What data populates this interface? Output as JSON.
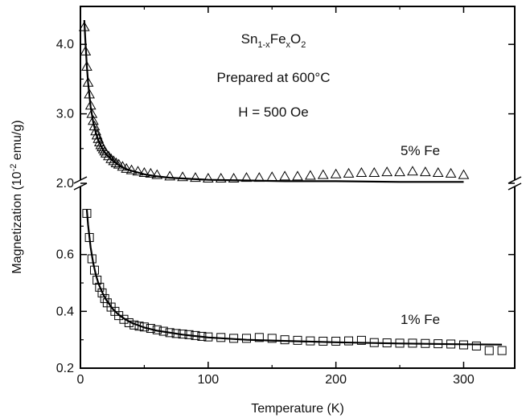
{
  "chart_data": {
    "type": "scatter",
    "title": "",
    "xlabel": "Temperature (K)",
    "ylabel": "Magnetization (10",
    "ylabel_sup": "-2",
    "ylabel_tail": " emu/g)",
    "xlim": [
      0,
      340
    ],
    "x_ticks": [
      0,
      100,
      200,
      300
    ],
    "x_tick_labels": [
      "0",
      "100",
      "200",
      "300"
    ],
    "broken_y_axis": true,
    "upper_panel": {
      "ylim": [
        2.0,
        4.5
      ],
      "y_ticks": [
        2.0,
        3.0,
        4.0
      ],
      "y_tick_labels": [
        "2.0",
        "3.0",
        "4.0"
      ]
    },
    "lower_panel": {
      "ylim": [
        0.2,
        0.8
      ],
      "y_ticks": [
        0.2,
        0.4,
        0.6
      ],
      "y_tick_labels": [
        "0.2",
        "0.4",
        "0.6"
      ]
    },
    "annotations": {
      "formula_base": [
        "Sn",
        "Fe",
        "O"
      ],
      "formula_subs": [
        "1-x",
        "x",
        "2"
      ],
      "line2": "Prepared at 600°C",
      "line3": "H = 500 Oe"
    },
    "series": [
      {
        "name": "5% Fe",
        "marker": "triangle",
        "panel": "upper",
        "x": [
          3,
          4,
          5,
          6,
          7,
          8,
          9,
          10,
          11,
          12,
          13,
          14,
          15,
          16,
          17,
          18,
          19,
          20,
          22,
          24,
          26,
          28,
          30,
          33,
          36,
          40,
          45,
          50,
          55,
          60,
          70,
          80,
          90,
          100,
          110,
          120,
          130,
          140,
          150,
          160,
          170,
          180,
          190,
          200,
          210,
          220,
          230,
          240,
          250,
          260,
          270,
          280,
          290,
          300
        ],
        "y": [
          4.25,
          3.9,
          3.68,
          3.45,
          3.28,
          3.12,
          3.0,
          2.9,
          2.82,
          2.75,
          2.69,
          2.64,
          2.59,
          2.55,
          2.52,
          2.49,
          2.46,
          2.43,
          2.39,
          2.35,
          2.32,
          2.29,
          2.27,
          2.24,
          2.21,
          2.19,
          2.17,
          2.15,
          2.14,
          2.12,
          2.1,
          2.09,
          2.08,
          2.07,
          2.07,
          2.07,
          2.08,
          2.08,
          2.09,
          2.1,
          2.1,
          2.11,
          2.12,
          2.13,
          2.14,
          2.15,
          2.15,
          2.16,
          2.16,
          2.17,
          2.16,
          2.15,
          2.14,
          2.12
        ],
        "fit": {
          "x": [
            3,
            4,
            5,
            6,
            8,
            10,
            12,
            14,
            16,
            18,
            20,
            25,
            30,
            35,
            40,
            50,
            60,
            70,
            80,
            100,
            130,
            160,
            200,
            250,
            300
          ],
          "y": [
            4.35,
            4.0,
            3.7,
            3.45,
            3.1,
            2.88,
            2.73,
            2.62,
            2.54,
            2.47,
            2.42,
            2.33,
            2.26,
            2.21,
            2.18,
            2.13,
            2.1,
            2.08,
            2.07,
            2.05,
            2.04,
            2.03,
            2.03,
            2.02,
            2.02
          ]
        }
      },
      {
        "name": "1% Fe",
        "marker": "square",
        "panel": "lower",
        "x": [
          5,
          7,
          9,
          11,
          13,
          15,
          17,
          19,
          21,
          24,
          27,
          30,
          34,
          38,
          42,
          46,
          50,
          55,
          60,
          65,
          70,
          75,
          80,
          85,
          90,
          95,
          100,
          110,
          120,
          130,
          140,
          150,
          160,
          170,
          180,
          190,
          200,
          210,
          220,
          230,
          240,
          250,
          260,
          270,
          280,
          290,
          300,
          310,
          320,
          330
        ],
        "y": [
          0.745,
          0.66,
          0.585,
          0.545,
          0.51,
          0.485,
          0.465,
          0.445,
          0.43,
          0.415,
          0.4,
          0.385,
          0.372,
          0.36,
          0.352,
          0.348,
          0.345,
          0.34,
          0.335,
          0.33,
          0.325,
          0.322,
          0.32,
          0.318,
          0.315,
          0.312,
          0.31,
          0.308,
          0.305,
          0.305,
          0.308,
          0.305,
          0.3,
          0.298,
          0.296,
          0.295,
          0.295,
          0.296,
          0.298,
          0.29,
          0.289,
          0.288,
          0.288,
          0.287,
          0.286,
          0.285,
          0.282,
          0.278,
          0.262,
          0.262
        ],
        "fit": {
          "x": [
            5,
            6,
            8,
            10,
            12,
            14,
            16,
            18,
            20,
            25,
            30,
            35,
            40,
            50,
            60,
            70,
            80,
            100,
            130,
            160,
            200,
            250,
            300,
            330
          ],
          "y": [
            0.76,
            0.705,
            0.625,
            0.57,
            0.53,
            0.5,
            0.478,
            0.458,
            0.442,
            0.41,
            0.388,
            0.372,
            0.36,
            0.343,
            0.332,
            0.325,
            0.318,
            0.308,
            0.3,
            0.296,
            0.291,
            0.287,
            0.284,
            0.283
          ]
        }
      }
    ]
  }
}
